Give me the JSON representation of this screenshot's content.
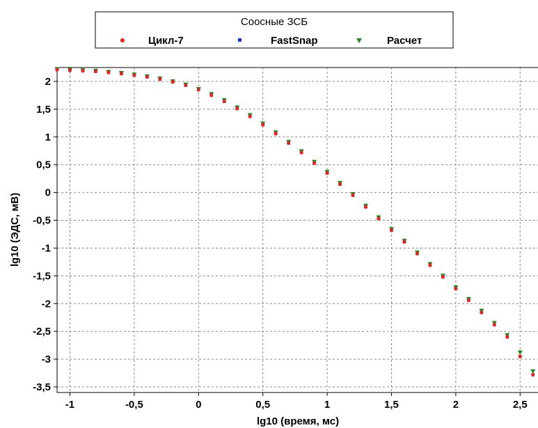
{
  "chart_data": {
    "type": "scatter",
    "title": "",
    "xlabel": "lg10 (время, мс)",
    "ylabel": "lg10 (ЭДС, мВ)",
    "xlim": [
      -1.1,
      2.65
    ],
    "ylim": [
      -3.6,
      2.25
    ],
    "x_ticks": [
      -1,
      -0.5,
      0,
      0.5,
      1,
      1.5,
      2,
      2.5
    ],
    "x_tick_labels": [
      "-1",
      "-0,5",
      "0",
      "0,5",
      "1",
      "1,5",
      "2",
      "2,5"
    ],
    "y_ticks": [
      2,
      1.5,
      1,
      0.5,
      0,
      -0.5,
      -1,
      -1.5,
      -2,
      -2.5,
      -3,
      -3.5
    ],
    "y_tick_labels": [
      "2",
      "1,5",
      "1",
      "0,5",
      "0",
      "-0,5",
      "-1",
      "-1,5",
      "-2",
      "-2,5",
      "-3",
      "-3,5"
    ],
    "grid": true,
    "legend": {
      "title": "Соосные ЗСБ",
      "placement": "top",
      "entries": [
        "Цикл-7",
        "FastSnap",
        "Расчет"
      ]
    },
    "series": [
      {
        "name": "Цикл-7",
        "color": "#e8231c",
        "marker": "circle",
        "x": [
          -1.1,
          -1.0,
          -0.9,
          -0.8,
          -0.7,
          -0.6,
          -0.5,
          -0.4,
          -0.3,
          -0.2,
          -0.1,
          0.0,
          0.1,
          0.2,
          0.3,
          0.4,
          0.5,
          0.6,
          0.7,
          0.8,
          0.9,
          1.0,
          1.1,
          1.2,
          1.3,
          1.4,
          1.5,
          1.6,
          1.7,
          1.8,
          1.9,
          2.0,
          2.1,
          2.2,
          2.3,
          2.4,
          2.5,
          2.6
        ],
        "y": [
          2.21,
          2.2,
          2.19,
          2.18,
          2.16,
          2.14,
          2.11,
          2.08,
          2.04,
          1.99,
          1.93,
          1.85,
          1.75,
          1.64,
          1.51,
          1.37,
          1.22,
          1.06,
          0.89,
          0.72,
          0.53,
          0.35,
          0.15,
          -0.05,
          -0.26,
          -0.47,
          -0.68,
          -0.89,
          -1.1,
          -1.31,
          -1.52,
          -1.73,
          -1.94,
          -2.16,
          -2.38,
          -2.6,
          -2.95,
          -3.28
        ]
      },
      {
        "name": "FastSnap",
        "color": "#1f2fd6",
        "marker": "square",
        "x": [
          -1.1,
          -1.0,
          -0.9,
          -0.8,
          -0.7,
          -0.6,
          -0.5,
          -0.4,
          -0.3,
          -0.2,
          -0.1,
          0.0,
          0.1,
          0.2,
          0.3,
          0.4,
          0.5,
          0.6,
          0.7,
          0.8,
          0.9,
          1.0,
          1.1,
          1.2,
          1.3,
          1.4,
          1.5,
          1.6,
          1.7,
          1.8,
          1.9,
          2.0,
          2.1,
          2.2,
          2.3,
          2.4,
          2.5,
          2.6
        ],
        "y": [
          2.21,
          2.2,
          2.19,
          2.18,
          2.16,
          2.14,
          2.11,
          2.08,
          2.04,
          1.99,
          1.93,
          1.85,
          1.75,
          1.64,
          1.51,
          1.37,
          1.22,
          1.06,
          0.89,
          0.72,
          0.53,
          0.35,
          0.15,
          -0.05,
          -0.26,
          -0.47,
          -0.68,
          -0.89,
          -1.1,
          -1.31,
          -1.52,
          -1.73,
          -1.94,
          -2.16,
          -2.38,
          -2.6,
          -2.95,
          -3.28
        ]
      },
      {
        "name": "Расчет",
        "color": "#1e8c1e",
        "marker": "triangle-down",
        "x": [
          -1.1,
          -1.0,
          -0.9,
          -0.8,
          -0.7,
          -0.6,
          -0.5,
          -0.4,
          -0.3,
          -0.2,
          -0.1,
          0.0,
          0.1,
          0.2,
          0.3,
          0.4,
          0.5,
          0.6,
          0.7,
          0.8,
          0.9,
          1.0,
          1.1,
          1.2,
          1.3,
          1.4,
          1.5,
          1.6,
          1.7,
          1.8,
          1.9,
          2.0,
          2.1,
          2.2,
          2.3,
          2.4,
          2.5,
          2.6
        ],
        "y": [
          2.22,
          2.21,
          2.2,
          2.19,
          2.17,
          2.15,
          2.12,
          2.09,
          2.05,
          2.0,
          1.94,
          1.86,
          1.77,
          1.66,
          1.53,
          1.39,
          1.24,
          1.08,
          0.91,
          0.74,
          0.55,
          0.37,
          0.17,
          -0.03,
          -0.24,
          -0.45,
          -0.66,
          -0.87,
          -1.08,
          -1.29,
          -1.5,
          -1.71,
          -1.92,
          -2.13,
          -2.35,
          -2.57,
          -2.88,
          -3.22
        ]
      }
    ]
  }
}
